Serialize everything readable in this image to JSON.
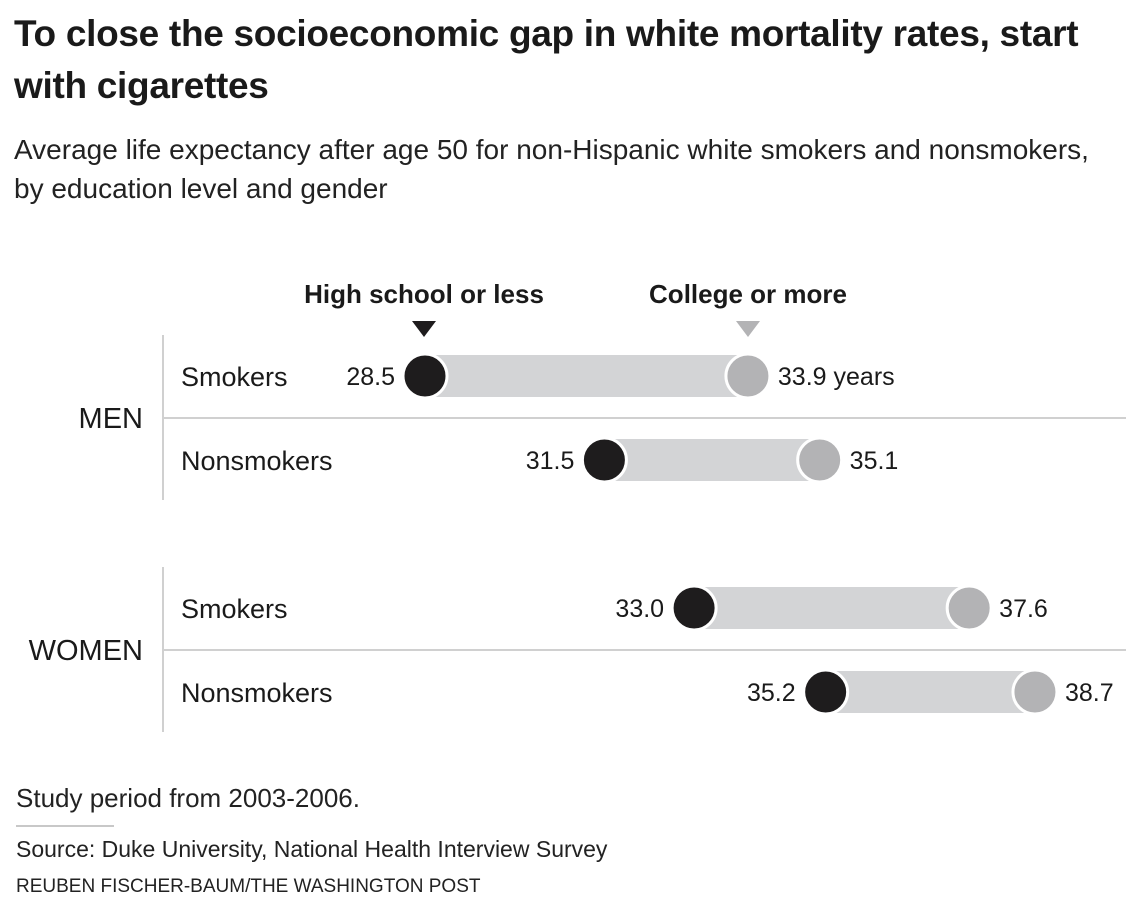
{
  "header": {
    "title": "To close the socioeconomic gap in white mortality rates, start with cigarettes",
    "subtitle": "Average life expectancy after age 50 for non-Hispanic white smokers and nonsmokers, by education level and gender"
  },
  "footer": {
    "note": "Study period from 2003-2006.",
    "source": "Source: Duke University, National Health Interview Survey",
    "credit": "REUBEN FISCHER-BAUM/THE WASHINGTON POST"
  },
  "colors": {
    "high_school": "#1e1c1d",
    "college": "#b3b3b5",
    "bar": "#d3d4d6",
    "rule": "#d0d0d0"
  },
  "chart_data": {
    "type": "dumbbell",
    "title": "To close the socioeconomic gap in white mortality rates, start with cigarettes",
    "subtitle": "Average life expectancy after age 50 for non-Hispanic white smokers and nonsmokers, by education level and gender",
    "unit": "years",
    "legend": [
      {
        "name": "High school or less",
        "color": "#1e1c1d"
      },
      {
        "name": "College or more",
        "color": "#b3b3b5"
      }
    ],
    "legend_placement": "top",
    "groups": [
      {
        "label": "MEN",
        "rows": [
          {
            "label": "Smokers",
            "high_school": 28.5,
            "college": 33.9,
            "high_label": "28.5",
            "college_label": "33.9 years"
          },
          {
            "label": "Nonsmokers",
            "high_school": 31.5,
            "college": 35.1,
            "high_label": "31.5",
            "college_label": "35.1"
          }
        ]
      },
      {
        "label": "WOMEN",
        "rows": [
          {
            "label": "Smokers",
            "high_school": 33.0,
            "college": 37.6,
            "high_label": "33.0",
            "college_label": "37.6"
          },
          {
            "label": "Nonsmokers",
            "high_school": 35.2,
            "college": 38.7,
            "high_label": "35.2",
            "college_label": "38.7"
          }
        ]
      }
    ],
    "x_range": [
      28.5,
      38.7
    ],
    "grid": false
  }
}
